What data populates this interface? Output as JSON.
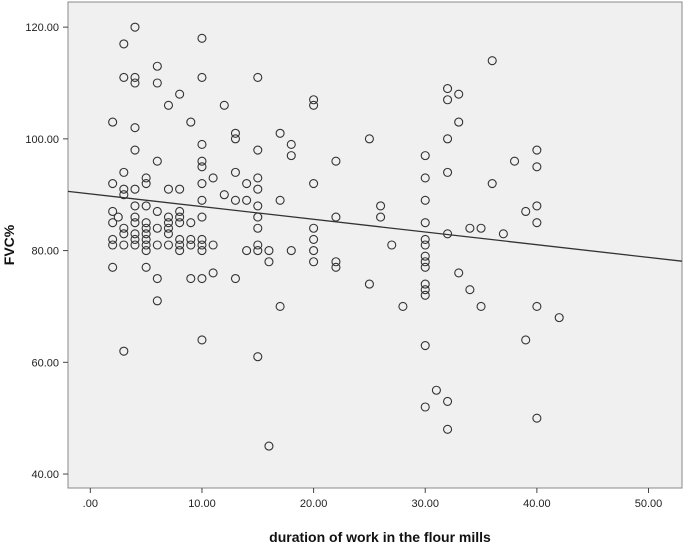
{
  "chart_data": {
    "type": "scatter",
    "title": "",
    "xlabel": "duration of work in the flour mills",
    "ylabel": "FVC%",
    "xlim": [
      -2,
      53
    ],
    "ylim": [
      37.5,
      124.5
    ],
    "xticks": [
      0,
      10,
      20,
      30,
      40,
      50
    ],
    "xtick_labels": [
      ".00",
      "10.00",
      "20.00",
      "30.00",
      "40.00",
      "50.00"
    ],
    "yticks": [
      40,
      60,
      80,
      100,
      120
    ],
    "ytick_labels": [
      "40.00",
      "60.00",
      "80.00",
      "100.00",
      "120.00"
    ],
    "grid": false,
    "legend": "none",
    "colors": {
      "plot_background": "#f0f0f0",
      "marker_stroke": "#333333",
      "fit_line": "#333333"
    },
    "fit_line": {
      "x": [
        -2,
        53
      ],
      "y": [
        90.6,
        78.1
      ]
    },
    "points": [
      [
        2,
        103
      ],
      [
        2,
        92
      ],
      [
        2,
        87
      ],
      [
        2,
        85
      ],
      [
        2,
        82
      ],
      [
        2,
        81
      ],
      [
        2,
        77
      ],
      [
        2.5,
        86
      ],
      [
        3,
        117
      ],
      [
        3,
        111
      ],
      [
        3,
        94
      ],
      [
        3,
        91
      ],
      [
        3,
        90
      ],
      [
        3,
        84
      ],
      [
        3,
        83
      ],
      [
        3,
        81
      ],
      [
        3,
        62
      ],
      [
        4,
        120
      ],
      [
        4,
        111
      ],
      [
        4,
        110
      ],
      [
        4,
        102
      ],
      [
        4,
        98
      ],
      [
        4,
        91
      ],
      [
        4,
        88
      ],
      [
        4,
        86
      ],
      [
        4,
        85
      ],
      [
        4,
        83
      ],
      [
        4,
        82
      ],
      [
        4,
        81
      ],
      [
        5,
        93
      ],
      [
        5,
        92
      ],
      [
        5,
        88
      ],
      [
        5,
        85
      ],
      [
        5,
        84
      ],
      [
        5,
        83
      ],
      [
        5,
        82
      ],
      [
        5,
        81
      ],
      [
        5,
        80
      ],
      [
        5,
        77
      ],
      [
        6,
        113
      ],
      [
        6,
        110
      ],
      [
        6,
        96
      ],
      [
        6,
        87
      ],
      [
        6,
        84
      ],
      [
        6,
        81
      ],
      [
        6,
        75
      ],
      [
        6,
        71
      ],
      [
        7,
        106
      ],
      [
        7,
        91
      ],
      [
        7,
        86
      ],
      [
        7,
        85
      ],
      [
        7,
        84
      ],
      [
        7,
        83
      ],
      [
        7,
        81
      ],
      [
        8,
        108
      ],
      [
        8,
        91
      ],
      [
        8,
        87
      ],
      [
        8,
        86
      ],
      [
        8,
        85
      ],
      [
        8,
        82
      ],
      [
        8,
        81
      ],
      [
        8,
        80
      ],
      [
        9,
        103
      ],
      [
        9,
        85
      ],
      [
        9,
        82
      ],
      [
        9,
        81
      ],
      [
        9,
        75
      ],
      [
        10,
        118
      ],
      [
        10,
        111
      ],
      [
        10,
        99
      ],
      [
        10,
        96
      ],
      [
        10,
        95
      ],
      [
        10,
        92
      ],
      [
        10,
        89
      ],
      [
        10,
        86
      ],
      [
        10,
        82
      ],
      [
        10,
        81
      ],
      [
        10,
        80
      ],
      [
        10,
        75
      ],
      [
        10,
        64
      ],
      [
        11,
        93
      ],
      [
        11,
        81
      ],
      [
        11,
        76
      ],
      [
        12,
        106
      ],
      [
        12,
        90
      ],
      [
        13,
        101
      ],
      [
        13,
        100
      ],
      [
        13,
        94
      ],
      [
        13,
        89
      ],
      [
        13,
        75
      ],
      [
        14,
        92
      ],
      [
        14,
        89
      ],
      [
        14,
        80
      ],
      [
        15,
        111
      ],
      [
        15,
        98
      ],
      [
        15,
        93
      ],
      [
        15,
        91
      ],
      [
        15,
        88
      ],
      [
        15,
        86
      ],
      [
        15,
        84
      ],
      [
        15,
        81
      ],
      [
        15,
        80
      ],
      [
        15,
        61
      ],
      [
        16,
        80
      ],
      [
        16,
        78
      ],
      [
        16,
        45
      ],
      [
        17,
        101
      ],
      [
        17,
        89
      ],
      [
        17,
        70
      ],
      [
        18,
        99
      ],
      [
        18,
        97
      ],
      [
        18,
        80
      ],
      [
        20,
        107
      ],
      [
        20,
        106
      ],
      [
        20,
        92
      ],
      [
        20,
        84
      ],
      [
        20,
        82
      ],
      [
        20,
        80
      ],
      [
        20,
        78
      ],
      [
        22,
        96
      ],
      [
        22,
        86
      ],
      [
        22,
        78
      ],
      [
        22,
        77
      ],
      [
        25,
        100
      ],
      [
        25,
        74
      ],
      [
        26,
        88
      ],
      [
        26,
        86
      ],
      [
        27,
        81
      ],
      [
        28,
        70
      ],
      [
        30,
        97
      ],
      [
        30,
        93
      ],
      [
        30,
        89
      ],
      [
        30,
        85
      ],
      [
        30,
        82
      ],
      [
        30,
        81
      ],
      [
        30,
        79
      ],
      [
        30,
        78
      ],
      [
        30,
        77
      ],
      [
        30,
        74
      ],
      [
        30,
        73
      ],
      [
        30,
        72
      ],
      [
        30,
        63
      ],
      [
        30,
        52
      ],
      [
        31,
        55
      ],
      [
        32,
        109
      ],
      [
        32,
        107
      ],
      [
        32,
        100
      ],
      [
        32,
        94
      ],
      [
        32,
        83
      ],
      [
        32,
        53
      ],
      [
        32,
        48
      ],
      [
        33,
        108
      ],
      [
        33,
        103
      ],
      [
        33,
        76
      ],
      [
        34,
        84
      ],
      [
        34,
        73
      ],
      [
        35,
        84
      ],
      [
        35,
        70
      ],
      [
        36,
        114
      ],
      [
        36,
        92
      ],
      [
        37,
        83
      ],
      [
        38,
        96
      ],
      [
        39,
        87
      ],
      [
        39,
        64
      ],
      [
        40,
        98
      ],
      [
        40,
        95
      ],
      [
        40,
        88
      ],
      [
        40,
        85
      ],
      [
        40,
        70
      ],
      [
        40,
        50
      ],
      [
        42,
        68
      ]
    ]
  }
}
